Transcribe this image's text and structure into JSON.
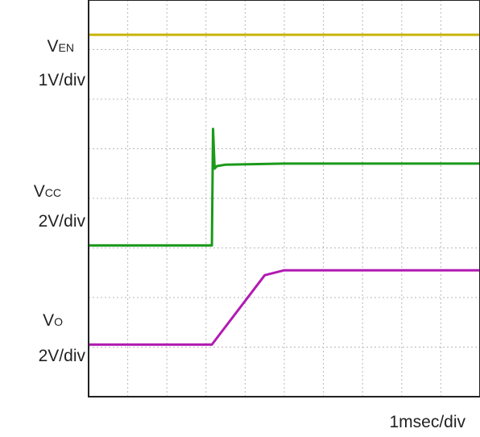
{
  "chart_data": {
    "type": "line",
    "title": "",
    "xlabel": "",
    "ylabel": "",
    "grid": true,
    "time_scale": "1msec/div",
    "divisions": {
      "x": 10,
      "y": 8
    },
    "xlim": [
      0,
      10
    ],
    "ylim": [
      0,
      8
    ],
    "channels": [
      {
        "symbol": "V",
        "subscript": "EN",
        "scale": "1V/div",
        "color": "#c8b400"
      },
      {
        "symbol": "V",
        "subscript": "CC",
        "scale": "2V/div",
        "color": "#1a9a1a"
      },
      {
        "symbol": "V",
        "subscript": "O",
        "scale": "2V/div",
        "color": "#b21ab2"
      }
    ],
    "series": [
      {
        "x": [
          0,
          10
        ],
        "y": [
          7.3,
          7.3
        ]
      },
      {
        "x": [
          0,
          3.15,
          3.18,
          3.22,
          3.28,
          3.5,
          5,
          10
        ],
        "y": [
          3.05,
          3.05,
          5.4,
          4.6,
          4.65,
          4.68,
          4.7,
          4.7
        ]
      },
      {
        "x": [
          0,
          3.15,
          4.5,
          5,
          10
        ],
        "y": [
          1.05,
          1.05,
          2.45,
          2.55,
          2.55
        ]
      }
    ],
    "x_unit": "div",
    "y_unit": "div"
  }
}
